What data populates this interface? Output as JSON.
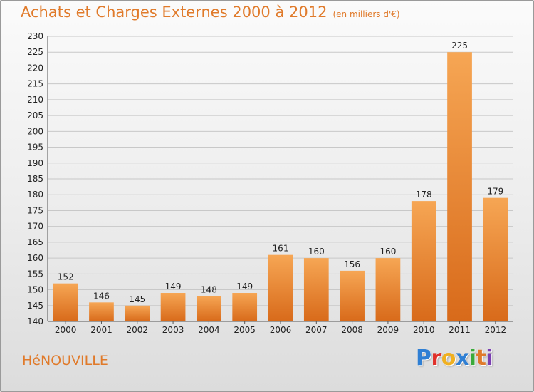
{
  "title": "Achats et Charges Externes 2000 à 2012",
  "subtitle": "(en milliers d'€)",
  "city": "HéNOUVILLE",
  "brand": {
    "letters": [
      "P",
      "r",
      "o",
      "x",
      "i",
      "t",
      "i"
    ],
    "colors": [
      "#2f7fd4",
      "#e0302a",
      "#f0b020",
      "#2f7fd4",
      "#3aaa3a",
      "#e07a2a",
      "#7a3fb0"
    ]
  },
  "colors": {
    "accent": "#e07a2a",
    "bar_light": "#f6a654",
    "bar_dark": "#d86a1a",
    "grid": "#c8c8c8"
  },
  "chart_data": {
    "type": "bar",
    "title": "Achats et Charges Externes 2000 à 2012",
    "subtitle": "(en milliers d'€)",
    "xlabel": "",
    "ylabel": "",
    "categories": [
      "2000",
      "2001",
      "2002",
      "2003",
      "2004",
      "2005",
      "2006",
      "2007",
      "2008",
      "2009",
      "2010",
      "2011",
      "2012"
    ],
    "values": [
      152,
      146,
      145,
      149,
      148,
      149,
      161,
      160,
      156,
      160,
      178,
      225,
      179
    ],
    "ylim": [
      140,
      230
    ],
    "ytick_step": 5,
    "grid": true,
    "legend": "none"
  }
}
